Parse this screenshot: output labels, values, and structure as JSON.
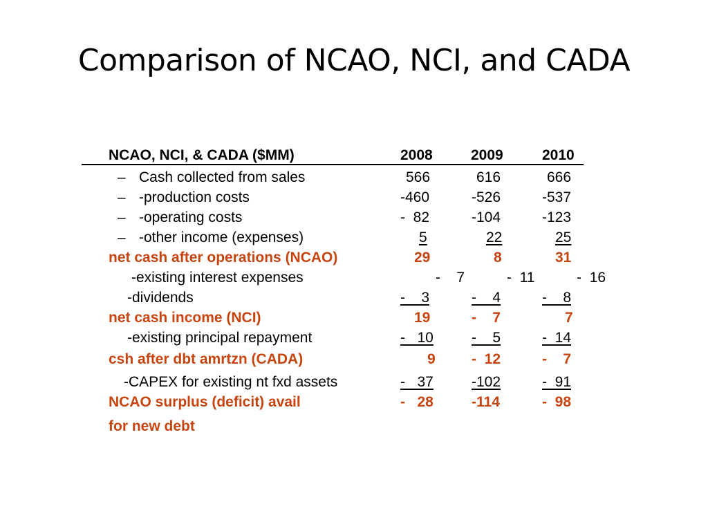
{
  "slide": {
    "title": "Comparison of NCAO, NCI, and CADA"
  },
  "table": {
    "header": {
      "label": "NCAO, NCI, & CADA ($MM)",
      "years": [
        "2008",
        "2009",
        "2010"
      ]
    },
    "rows": [
      {
        "label": "Cash collected from sales",
        "values": [
          "566",
          "616",
          "666"
        ]
      },
      {
        "label": "-production costs",
        "values": [
          "-460",
          "-526",
          "-537"
        ]
      },
      {
        "label": "-operating costs",
        "values": [
          "-  82",
          "-104",
          "-123"
        ]
      },
      {
        "label": "-other income (expenses)",
        "values": [
          "5",
          "22",
          "25"
        ]
      },
      {
        "label": "net cash after operations (NCAO)",
        "values": [
          "29",
          "8",
          "31"
        ]
      },
      {
        "label": "-existing interest expenses",
        "values": [
          "-    7",
          "-  11",
          "-  16"
        ]
      },
      {
        "label": "-dividends",
        "values": [
          "-    3",
          "-    4",
          "-    8"
        ]
      },
      {
        "label": "net cash income (NCI)",
        "values": [
          "19",
          "-    7",
          "7"
        ]
      },
      {
        "label": "-existing principal repayment",
        "values": [
          "-   10",
          "-    5",
          "-  14"
        ]
      },
      {
        "label": "csh after dbt amrtzn (CADA)",
        "values": [
          "9",
          "-  12",
          "-    7"
        ]
      },
      {
        "label": "-CAPEX for existing nt fxd assets",
        "values": [
          "-   37",
          "-102",
          "-  91"
        ]
      },
      {
        "label": "NCAO surplus (deficit) avail",
        "values": [
          "-   28",
          "-114",
          "-  98"
        ]
      },
      {
        "label": "for new debt"
      }
    ],
    "bullet": "–"
  }
}
